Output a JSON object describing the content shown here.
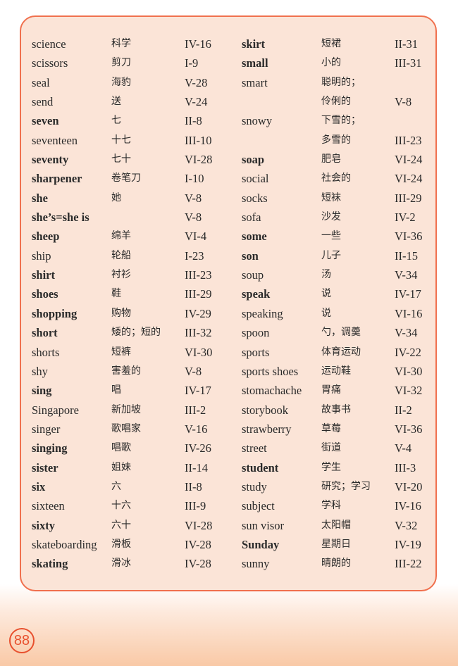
{
  "left_column": [
    {
      "en": "science",
      "zh": "科学",
      "ref": "IV-16",
      "bold": false
    },
    {
      "en": "scissors",
      "zh": "剪刀",
      "ref": "I-9",
      "bold": false
    },
    {
      "en": "seal",
      "zh": "海豹",
      "ref": "V-28",
      "bold": false
    },
    {
      "en": "send",
      "zh": "送",
      "ref": "V-24",
      "bold": false
    },
    {
      "en": "seven",
      "zh": "七",
      "ref": "II-8",
      "bold": true
    },
    {
      "en": "seventeen",
      "zh": "十七",
      "ref": "III-10",
      "bold": false
    },
    {
      "en": "seventy",
      "zh": "七十",
      "ref": "VI-28",
      "bold": true
    },
    {
      "en": "sharpener",
      "zh": "卷笔刀",
      "ref": "I-10",
      "bold": true
    },
    {
      "en": "she",
      "zh": "她",
      "ref": "V-8",
      "bold": true
    },
    {
      "en": "she’s=she is",
      "zh": "",
      "ref": "V-8",
      "bold": true
    },
    {
      "en": "sheep",
      "zh": "绵羊",
      "ref": "VI-4",
      "bold": true
    },
    {
      "en": "ship",
      "zh": "轮船",
      "ref": "I-23",
      "bold": false
    },
    {
      "en": "shirt",
      "zh": "衬衫",
      "ref": "III-23",
      "bold": true
    },
    {
      "en": "shoes",
      "zh": "鞋",
      "ref": "III-29",
      "bold": true
    },
    {
      "en": "shopping",
      "zh": "购物",
      "ref": "IV-29",
      "bold": true
    },
    {
      "en": "short",
      "zh": "矮的；短的",
      "ref": "III-32",
      "bold": true
    },
    {
      "en": "shorts",
      "zh": "短裤",
      "ref": "VI-30",
      "bold": false
    },
    {
      "en": "shy",
      "zh": "害羞的",
      "ref": "V-8",
      "bold": false
    },
    {
      "en": "sing",
      "zh": "唱",
      "ref": "IV-17",
      "bold": true
    },
    {
      "en": "Singapore",
      "zh": "新加坡",
      "ref": "III-2",
      "bold": false
    },
    {
      "en": "singer",
      "zh": "歌唱家",
      "ref": "V-16",
      "bold": false
    },
    {
      "en": "singing",
      "zh": "唱歌",
      "ref": "IV-26",
      "bold": true
    },
    {
      "en": "sister",
      "zh": "姐妹",
      "ref": "II-14",
      "bold": true
    },
    {
      "en": "six",
      "zh": "六",
      "ref": "II-8",
      "bold": true
    },
    {
      "en": "sixteen",
      "zh": "十六",
      "ref": "III-9",
      "bold": false
    },
    {
      "en": "sixty",
      "zh": "六十",
      "ref": "VI-28",
      "bold": true
    },
    {
      "en": "skateboarding",
      "zh": "滑板",
      "ref": "IV-28",
      "bold": false
    },
    {
      "en": "skating",
      "zh": "滑冰",
      "ref": "IV-28",
      "bold": true
    }
  ],
  "right_column": [
    {
      "en": "skirt",
      "zh": "短裙",
      "ref": "II-31",
      "bold": true
    },
    {
      "en": "small",
      "zh": "小的",
      "ref": "III-31",
      "bold": true
    },
    {
      "en": "smart",
      "zh": "聪明的；",
      "ref": "",
      "bold": false
    },
    {
      "en": "",
      "zh": "伶俐的",
      "ref": "V-8",
      "bold": false
    },
    {
      "en": "snowy",
      "zh": "下雪的；",
      "ref": "",
      "bold": false
    },
    {
      "en": "",
      "zh": "多雪的",
      "ref": "III-23",
      "bold": false
    },
    {
      "en": "soap",
      "zh": "肥皂",
      "ref": "VI-24",
      "bold": true
    },
    {
      "en": "social",
      "zh": "社会的",
      "ref": "VI-24",
      "bold": false
    },
    {
      "en": "socks",
      "zh": "短袜",
      "ref": "III-29",
      "bold": false
    },
    {
      "en": "sofa",
      "zh": "沙发",
      "ref": "IV-2",
      "bold": false
    },
    {
      "en": "some",
      "zh": "一些",
      "ref": "VI-36",
      "bold": true
    },
    {
      "en": "son",
      "zh": "儿子",
      "ref": "II-15",
      "bold": true
    },
    {
      "en": "soup",
      "zh": "汤",
      "ref": "V-34",
      "bold": false
    },
    {
      "en": "speak",
      "zh": "说",
      "ref": "IV-17",
      "bold": true
    },
    {
      "en": "speaking",
      "zh": "说",
      "ref": "VI-16",
      "bold": false
    },
    {
      "en": "spoon",
      "zh": "勺，调羹",
      "ref": "V-34",
      "bold": false
    },
    {
      "en": "sports",
      "zh": "体育运动",
      "ref": "IV-22",
      "bold": false
    },
    {
      "en": "sports shoes",
      "zh": "运动鞋",
      "ref": "VI-30",
      "bold": false
    },
    {
      "en": "stomachache",
      "zh": "胃痛",
      "ref": "VI-32",
      "bold": false
    },
    {
      "en": "storybook",
      "zh": "故事书",
      "ref": "II-2",
      "bold": false
    },
    {
      "en": "strawberry",
      "zh": "草莓",
      "ref": "VI-36",
      "bold": false
    },
    {
      "en": "street",
      "zh": "街道",
      "ref": "V-4",
      "bold": false
    },
    {
      "en": "student",
      "zh": "学生",
      "ref": "III-3",
      "bold": true
    },
    {
      "en": "study",
      "zh": "研究；学习",
      "ref": "VI-20",
      "bold": false
    },
    {
      "en": "subject",
      "zh": "学科",
      "ref": "IV-16",
      "bold": false
    },
    {
      "en": "sun visor",
      "zh": "太阳帽",
      "ref": "V-32",
      "bold": false
    },
    {
      "en": "Sunday",
      "zh": "星期日",
      "ref": "IV-19",
      "bold": true
    },
    {
      "en": "sunny",
      "zh": "晴朗的",
      "ref": "III-22",
      "bold": false
    }
  ],
  "page_number": "88",
  "colors": {
    "border": "#f0704e",
    "panel": "#fbe4d7",
    "page_number": "#e8502e"
  }
}
